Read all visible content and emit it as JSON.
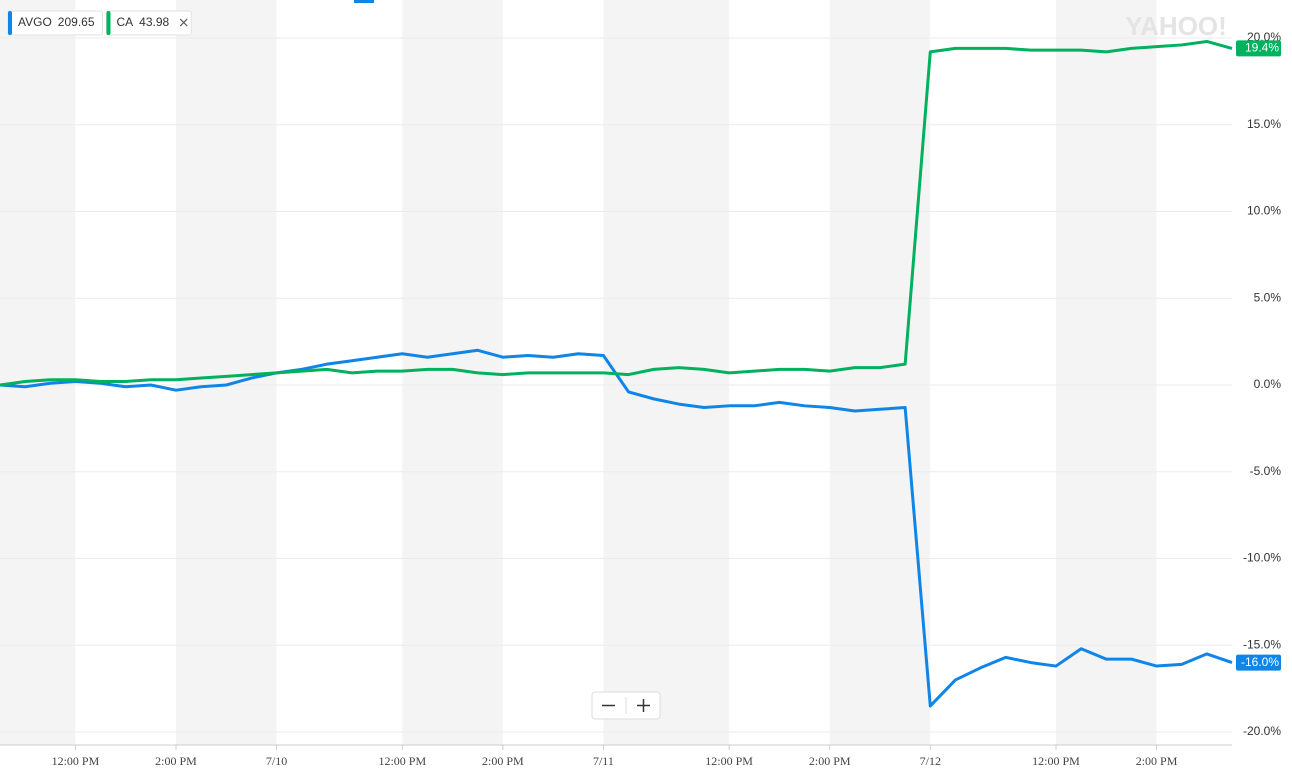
{
  "chart_data": {
    "type": "line",
    "watermark": "YAHOO!",
    "categories": [
      null,
      null,
      null,
      "12:00 PM",
      null,
      null,
      null,
      "2:00 PM",
      null,
      null,
      null,
      "7/10",
      null,
      null,
      null,
      null,
      "12:00 PM",
      null,
      null,
      null,
      "2:00 PM",
      null,
      null,
      null,
      "7/11",
      null,
      null,
      null,
      null,
      "12:00 PM",
      null,
      null,
      null,
      "2:00 PM",
      null,
      null,
      null,
      "7/12",
      null,
      null,
      null,
      null,
      "12:00 PM",
      null,
      null,
      null,
      "2:00 PM",
      null,
      null,
      null
    ],
    "series": [
      {
        "name": "AVGO",
        "price": 209.65,
        "color": "#0f85e8",
        "values": [
          0.0,
          -0.1,
          0.1,
          0.2,
          0.1,
          -0.1,
          0.0,
          -0.3,
          -0.1,
          0.0,
          0.4,
          0.7,
          0.9,
          1.2,
          1.4,
          1.6,
          1.8,
          1.6,
          1.8,
          2.0,
          1.6,
          1.7,
          1.6,
          1.8,
          1.7,
          -0.4,
          -0.8,
          -1.1,
          -1.3,
          -1.2,
          -1.2,
          -1.0,
          -1.2,
          -1.3,
          -1.5,
          -1.4,
          -1.3,
          -18.5,
          -17.0,
          -16.3,
          -15.7,
          -16.0,
          -16.2,
          -15.2,
          -15.8,
          -15.8,
          -16.2,
          -16.1,
          -15.5,
          -16.0
        ],
        "value_labels": [
          null,
          null,
          null,
          null,
          null,
          null,
          null,
          null,
          null,
          null,
          null,
          null,
          null,
          null,
          null,
          null,
          null,
          null,
          null,
          null,
          null,
          null,
          null,
          null,
          null,
          null,
          null,
          null,
          null,
          null,
          null,
          null,
          null,
          null,
          null,
          null,
          null,
          null,
          null,
          null,
          null,
          null,
          null,
          null,
          null,
          null,
          null,
          null,
          null,
          "-16.0%"
        ]
      },
      {
        "name": "CA",
        "price": 43.98,
        "color": "#00b15d",
        "values": [
          0.0,
          0.2,
          0.3,
          0.3,
          0.2,
          0.2,
          0.3,
          0.3,
          0.4,
          0.5,
          0.6,
          0.7,
          0.8,
          0.9,
          0.7,
          0.8,
          0.8,
          0.9,
          0.9,
          0.7,
          0.6,
          0.7,
          0.7,
          0.7,
          0.7,
          0.6,
          0.9,
          1.0,
          0.9,
          0.7,
          0.8,
          0.9,
          0.9,
          0.8,
          1.0,
          1.0,
          1.2,
          19.2,
          19.4,
          19.4,
          19.4,
          19.3,
          19.3,
          19.3,
          19.2,
          19.4,
          19.5,
          19.6,
          19.8,
          19.4
        ],
        "value_labels": [
          null,
          null,
          null,
          null,
          null,
          null,
          null,
          null,
          null,
          null,
          null,
          null,
          null,
          null,
          null,
          null,
          null,
          null,
          null,
          null,
          null,
          null,
          null,
          null,
          null,
          null,
          null,
          null,
          null,
          null,
          null,
          null,
          null,
          null,
          null,
          null,
          null,
          null,
          null,
          null,
          null,
          null,
          null,
          null,
          null,
          null,
          null,
          null,
          null,
          "19.4%"
        ]
      }
    ],
    "ylim": [
      -20.75,
      22.19
    ],
    "yticks": [
      {
        "value": -20,
        "label": "-20.0%"
      },
      {
        "value": -15,
        "label": "-15.0%"
      },
      {
        "value": -10,
        "label": "-10.0%"
      },
      {
        "value": -5,
        "label": "-5.0%"
      },
      {
        "value": 0,
        "label": "0.0%"
      },
      {
        "value": 5,
        "label": "5.0%"
      },
      {
        "value": 10,
        "label": "10.0%"
      },
      {
        "value": 15,
        "label": "15.0%"
      },
      {
        "value": 20,
        "label": "20.0%"
      }
    ],
    "grid": true
  }
}
